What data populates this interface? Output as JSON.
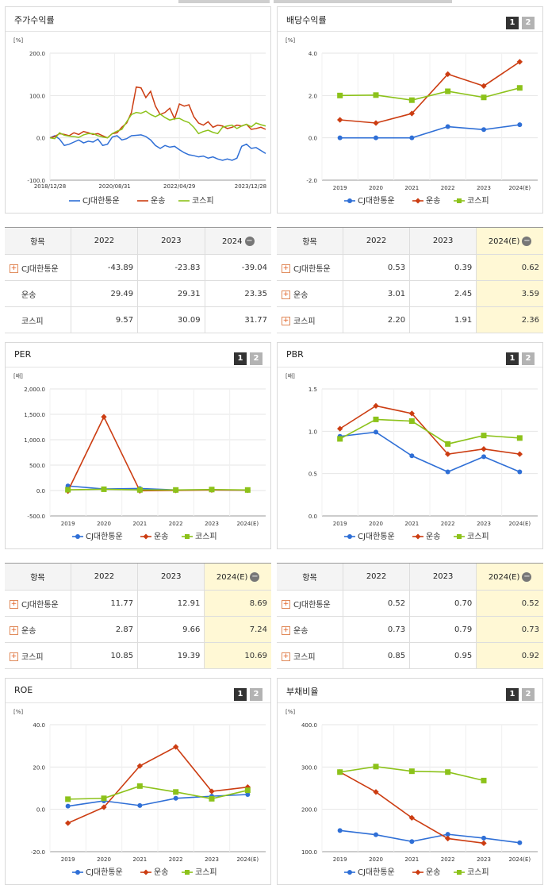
{
  "legend": [
    "CJ대한통운",
    "운송",
    "코스피"
  ],
  "colors": {
    "s1": "#2f6fd6",
    "s2": "#cc3d12",
    "s3": "#8cc21a"
  },
  "charts": [
    {
      "key": "c1",
      "title": "주가수익률",
      "unit": "[%]",
      "pages": false,
      "chart_data": {
        "type": "line",
        "x_tick_labels": [
          "2018/12/28",
          "2020/08/31",
          "2022/04/29",
          "2023/12/28"
        ],
        "y_ticks": [
          "200.0",
          "100.0",
          "0.0",
          "-100.0"
        ],
        "ylim": [
          -100,
          200
        ],
        "series": [
          {
            "name": "CJ대한통운",
            "values": [
              0,
              5,
              -3,
              -18,
              -15,
              -10,
              -5,
              -12,
              -8,
              -10,
              -3,
              -18,
              -15,
              2,
              5,
              -5,
              -2,
              5,
              6,
              7,
              3,
              -5,
              -18,
              -25,
              -18,
              -22,
              -20,
              -28,
              -35,
              -40,
              -42,
              -45,
              -43,
              -48,
              -45,
              -50,
              -53,
              -50,
              -53,
              -48,
              -20,
              -15,
              -25,
              -23,
              -30,
              -37
            ]
          },
          {
            "name": "운송",
            "values": [
              0,
              3,
              10,
              8,
              5,
              12,
              8,
              15,
              12,
              8,
              10,
              5,
              0,
              10,
              12,
              25,
              35,
              60,
              120,
              118,
              95,
              110,
              75,
              55,
              60,
              70,
              45,
              80,
              75,
              78,
              50,
              35,
              30,
              38,
              25,
              30,
              28,
              22,
              25,
              30,
              28,
              32,
              20,
              22,
              25,
              20
            ]
          },
          {
            "name": "코스피",
            "values": [
              0,
              -2,
              12,
              6,
              4,
              3,
              1,
              7,
              10,
              10,
              5,
              2,
              0,
              10,
              16,
              20,
              38,
              55,
              60,
              58,
              63,
              55,
              50,
              56,
              48,
              42,
              45,
              46,
              40,
              36,
              25,
              10,
              15,
              18,
              13,
              10,
              25,
              28,
              30,
              22,
              28,
              32,
              26,
              35,
              31,
              28
            ]
          }
        ]
      }
    },
    {
      "key": "c2",
      "title": "배당수익률",
      "unit": "[%]",
      "pages": true,
      "chart_data": {
        "type": "line",
        "x": [
          "2019",
          "2020",
          "2021",
          "2022",
          "2023",
          "2024(E)"
        ],
        "y_ticks": [
          "4.0",
          "2.0",
          "0.0",
          "-2.0"
        ],
        "ylim": [
          -2,
          4
        ],
        "series": [
          {
            "name": "CJ대한통운",
            "values": [
              0.0,
              0.0,
              0.0,
              0.53,
              0.39,
              0.62
            ]
          },
          {
            "name": "운송",
            "values": [
              0.85,
              0.7,
              1.15,
              3.01,
              2.45,
              3.59
            ]
          },
          {
            "name": "코스피",
            "values": [
              2.0,
              2.02,
              1.78,
              2.2,
              1.91,
              2.36
            ]
          }
        ]
      }
    },
    {
      "key": "c3",
      "title": "PER",
      "unit": "[배]",
      "pages": true,
      "chart_data": {
        "type": "line",
        "x": [
          "2019",
          "2020",
          "2021",
          "2022",
          "2023",
          "2024(E)"
        ],
        "y_ticks": [
          "2,000.0",
          "1,500.0",
          "1,000.0",
          "500.0",
          "0.0",
          "-500.0"
        ],
        "ylim": [
          -500,
          2000
        ],
        "series": [
          {
            "name": "CJ대한통운",
            "values": [
              90,
              30,
              40,
              11.77,
              12.91,
              8.69
            ]
          },
          {
            "name": "운송",
            "values": [
              -10,
              1450,
              -5,
              2.87,
              9.66,
              7.24
            ]
          },
          {
            "name": "코스피",
            "values": [
              15,
              25,
              12,
              10.85,
              19.39,
              10.69
            ]
          }
        ]
      }
    },
    {
      "key": "c4",
      "title": "PBR",
      "unit": "[배]",
      "pages": true,
      "chart_data": {
        "type": "line",
        "x": [
          "2019",
          "2020",
          "2021",
          "2022",
          "2023",
          "2024(E)"
        ],
        "y_ticks": [
          "1.5",
          "1.0",
          "0.5",
          "0.0"
        ],
        "ylim": [
          0,
          1.5
        ],
        "series": [
          {
            "name": "CJ대한통운",
            "values": [
              0.94,
              0.99,
              0.71,
              0.52,
              0.7,
              0.52
            ]
          },
          {
            "name": "운송",
            "values": [
              1.03,
              1.3,
              1.21,
              0.73,
              0.79,
              0.73
            ]
          },
          {
            "name": "코스피",
            "values": [
              0.91,
              1.14,
              1.12,
              0.85,
              0.95,
              0.92
            ]
          }
        ]
      }
    },
    {
      "key": "c5",
      "title": "ROE",
      "unit": "[%]",
      "pages": true,
      "chart_data": {
        "type": "line",
        "x": [
          "2019",
          "2020",
          "2021",
          "2022",
          "2023",
          "2024(E)"
        ],
        "y_ticks": [
          "40.0",
          "20.0",
          "0.0",
          "-20.0"
        ],
        "ylim": [
          -20,
          40
        ],
        "series": [
          {
            "name": "CJ대한통운",
            "values": [
              1.5,
              4.0,
              1.8,
              5.2,
              6.2,
              7.0
            ]
          },
          {
            "name": "운송",
            "values": [
              -6.5,
              1.0,
              20.5,
              29.5,
              8.5,
              10.5
            ]
          },
          {
            "name": "코스피",
            "values": [
              4.8,
              5.2,
              11.0,
              8.2,
              5.0,
              9.0
            ]
          }
        ]
      }
    },
    {
      "key": "c6",
      "title": "부채비율",
      "unit": "[%]",
      "pages": true,
      "chart_data": {
        "type": "line",
        "x": [
          "2019",
          "2020",
          "2021",
          "2022",
          "2023",
          "2024(E)"
        ],
        "y_ticks": [
          "400.0",
          "300.0",
          "200.0",
          "100.0"
        ],
        "ylim": [
          100,
          400
        ],
        "series": [
          {
            "name": "CJ대한통운",
            "values": [
              150,
              140,
              124,
              141,
              132,
              121
            ]
          },
          {
            "name": "운송",
            "values": [
              288,
              241,
              180,
              131,
              120,
              null
            ]
          },
          {
            "name": "코스피",
            "values": [
              288,
              301,
              290,
              288,
              268,
              null
            ]
          }
        ]
      }
    }
  ],
  "tables": [
    {
      "key": "t1",
      "headers": [
        "항목",
        "2022",
        "2023",
        "2024"
      ],
      "minus": true,
      "hl": false,
      "rows": [
        {
          "name": "CJ대한통운",
          "plus": true,
          "v": [
            "-43.89",
            "-23.83",
            "-39.04"
          ]
        },
        {
          "name": "운송",
          "plus": false,
          "v": [
            "29.49",
            "29.31",
            "23.35"
          ]
        },
        {
          "name": "코스피",
          "plus": false,
          "v": [
            "9.57",
            "30.09",
            "31.77"
          ]
        }
      ]
    },
    {
      "key": "t2",
      "headers": [
        "항목",
        "2022",
        "2023",
        "2024(E)"
      ],
      "minus": true,
      "hl": true,
      "rows": [
        {
          "name": "CJ대한통운",
          "plus": true,
          "v": [
            "0.53",
            "0.39",
            "0.62"
          ]
        },
        {
          "name": "운송",
          "plus": true,
          "v": [
            "3.01",
            "2.45",
            "3.59"
          ]
        },
        {
          "name": "코스피",
          "plus": true,
          "v": [
            "2.20",
            "1.91",
            "2.36"
          ]
        }
      ]
    },
    {
      "key": "t3",
      "headers": [
        "항목",
        "2022",
        "2023",
        "2024(E)"
      ],
      "minus": true,
      "hl": true,
      "rows": [
        {
          "name": "CJ대한통운",
          "plus": true,
          "v": [
            "11.77",
            "12.91",
            "8.69"
          ]
        },
        {
          "name": "운송",
          "plus": true,
          "v": [
            "2.87",
            "9.66",
            "7.24"
          ]
        },
        {
          "name": "코스피",
          "plus": true,
          "v": [
            "10.85",
            "19.39",
            "10.69"
          ]
        }
      ]
    },
    {
      "key": "t4",
      "headers": [
        "항목",
        "2022",
        "2023",
        "2024(E)"
      ],
      "minus": true,
      "hl": true,
      "rows": [
        {
          "name": "CJ대한통운",
          "plus": true,
          "v": [
            "0.52",
            "0.70",
            "0.52"
          ]
        },
        {
          "name": "운송",
          "plus": true,
          "v": [
            "0.73",
            "0.79",
            "0.73"
          ]
        },
        {
          "name": "코스피",
          "plus": true,
          "v": [
            "0.85",
            "0.95",
            "0.92"
          ]
        }
      ]
    }
  ]
}
